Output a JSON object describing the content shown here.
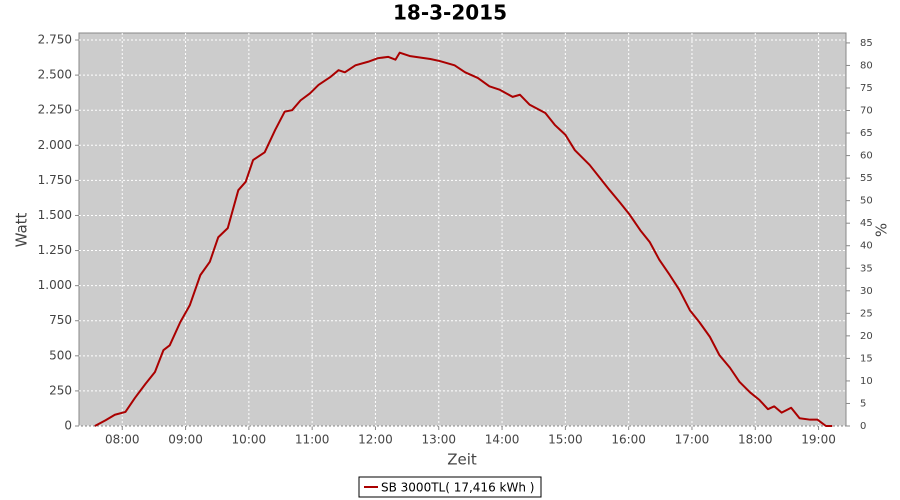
{
  "chart_data": {
    "type": "line",
    "title": "18-3-2015",
    "xlabel": "Zeit",
    "ylabel": "Watt",
    "y2label": "%",
    "xlim": [
      439,
      1166
    ],
    "xticks": [
      {
        "value": 480,
        "label": "08:00"
      },
      {
        "value": 540,
        "label": "09:00"
      },
      {
        "value": 600,
        "label": "10:00"
      },
      {
        "value": 660,
        "label": "11:00"
      },
      {
        "value": 720,
        "label": "12:00"
      },
      {
        "value": 780,
        "label": "13:00"
      },
      {
        "value": 840,
        "label": "14:00"
      },
      {
        "value": 900,
        "label": "15:00"
      },
      {
        "value": 960,
        "label": "16:00"
      },
      {
        "value": 1020,
        "label": "17:00"
      },
      {
        "value": 1080,
        "label": "18:00"
      },
      {
        "value": 1140,
        "label": "19:00"
      }
    ],
    "ylim": [
      0,
      2800
    ],
    "yticks": [
      0,
      250,
      500,
      750,
      {
        "value": 1000,
        "label": "1.000"
      },
      {
        "value": 1250,
        "label": "1.250"
      },
      {
        "value": 1500,
        "label": "1.500"
      },
      {
        "value": 1750,
        "label": "1.750"
      },
      {
        "value": 2000,
        "label": "2.000"
      },
      {
        "value": 2250,
        "label": "2.250"
      },
      {
        "value": 2500,
        "label": "2.500"
      },
      {
        "value": 2750,
        "label": "2.750"
      }
    ],
    "y2lim": [
      0,
      87.2
    ],
    "y2ticks": [
      0,
      5,
      10,
      15,
      20,
      25,
      30,
      35,
      40,
      45,
      50,
      55,
      60,
      65,
      70,
      75,
      80,
      85
    ],
    "grid": true,
    "x": [
      454,
      464,
      473,
      483,
      492,
      502,
      511,
      519,
      525,
      535,
      544,
      554,
      563,
      571,
      580,
      590,
      597,
      604,
      615,
      625,
      634,
      641,
      649,
      658,
      666,
      677,
      685,
      691,
      701,
      713,
      722,
      732,
      739,
      743,
      753,
      772,
      781,
      795,
      805,
      817,
      828,
      838,
      850,
      857,
      866,
      881,
      890,
      900,
      909,
      923,
      933,
      942,
      952,
      961,
      971,
      980,
      989,
      999,
      1008,
      1018,
      1027,
      1037,
      1046,
      1056,
      1065,
      1075,
      1084,
      1092,
      1098,
      1105,
      1114,
      1122,
      1132,
      1139,
      1147,
      1153
    ],
    "series": [
      {
        "name": "SB 3000TL( 17,416 kWh )",
        "color": "#aa0000",
        "values": [
          0,
          40,
          80,
          100,
          200,
          300,
          385,
          540,
          575,
          740,
          860,
          1075,
          1170,
          1345,
          1410,
          1680,
          1740,
          1895,
          1950,
          2110,
          2240,
          2250,
          2320,
          2370,
          2430,
          2485,
          2535,
          2520,
          2570,
          2595,
          2620,
          2630,
          2610,
          2660,
          2635,
          2615,
          2600,
          2570,
          2520,
          2480,
          2420,
          2395,
          2345,
          2360,
          2290,
          2230,
          2145,
          2075,
          1965,
          1860,
          1765,
          1680,
          1590,
          1505,
          1395,
          1310,
          1185,
          1075,
          970,
          825,
          740,
          635,
          505,
          415,
          315,
          240,
          185,
          120,
          140,
          95,
          130,
          55,
          45,
          45,
          0,
          0
        ]
      }
    ]
  }
}
